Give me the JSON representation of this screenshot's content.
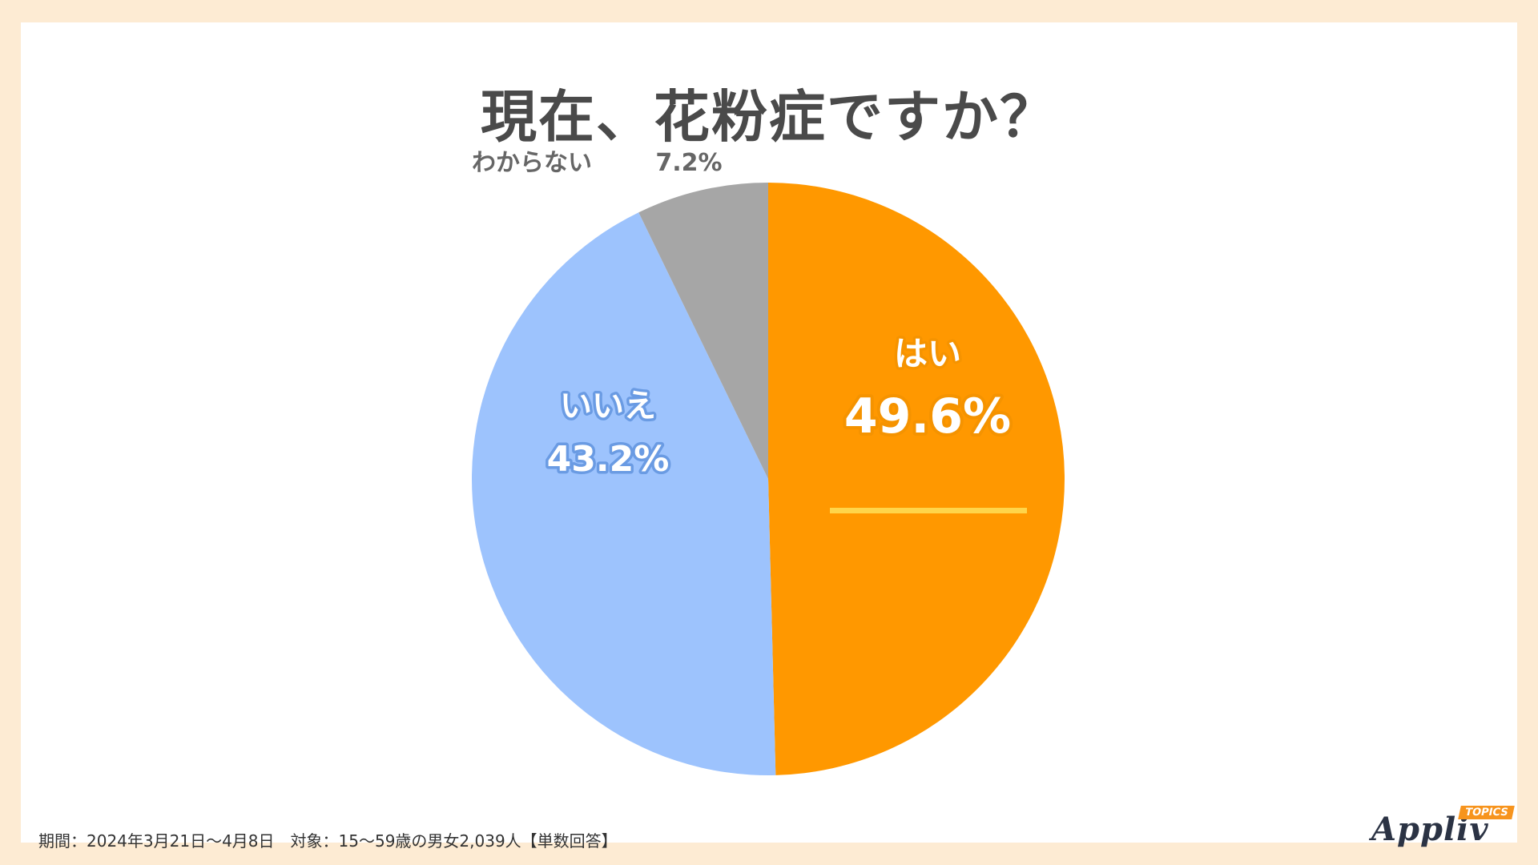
{
  "title": "現在、花粉症ですか？",
  "chart_data": {
    "type": "pie",
    "title": "現在、花粉症ですか？",
    "slices": [
      {
        "label": "はい",
        "value": 49.6,
        "display": "49.6%",
        "color": "#ff9800"
      },
      {
        "label": "いいえ",
        "value": 43.2,
        "display": "43.2%",
        "color": "#9dc3fd"
      },
      {
        "label": "わからない",
        "value": 7.2,
        "display": "7.2%",
        "color": "#a6a6a6"
      }
    ]
  },
  "footnote": "期間：2024年3月21日～4月8日　対象：15～59歳の男女2,039人【単数回答】",
  "logo": {
    "name": "Appliv",
    "badge": "TOPICS"
  }
}
